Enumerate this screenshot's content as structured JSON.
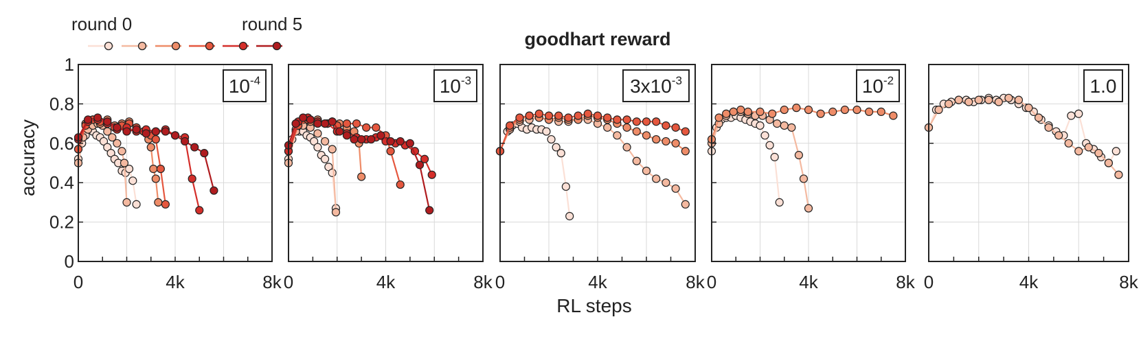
{
  "figure": {
    "title": "goodhart reward",
    "xlabel": "RL steps",
    "ylabel": "accuracy",
    "legend": {
      "start_label": "round 0",
      "end_label": "round 5",
      "placement": "top-left"
    },
    "round_colors": [
      "#fbe0d6",
      "#f4b9a0",
      "#ee8c68",
      "#e5573e",
      "#d42e2a",
      "#b01c1f"
    ]
  },
  "chart_data": [
    {
      "type": "line",
      "panel_label": {
        "base": "10",
        "exp": "-4"
      },
      "x_ticks": [
        "0",
        "4k",
        "8k"
      ],
      "y_ticks": [
        "0",
        "0.2",
        "0.4",
        "0.6",
        "0.8",
        "1"
      ],
      "xlim": [
        0,
        8000
      ],
      "ylim": [
        0,
        1
      ],
      "grid": true,
      "series": [
        {
          "round": 0,
          "x": [
            0,
            150,
            300,
            450,
            600,
            750,
            900,
            1050,
            1200,
            1350,
            1500,
            1650,
            1800,
            1950,
            2100,
            2250,
            2400
          ],
          "y": [
            0.52,
            0.6,
            0.64,
            0.67,
            0.66,
            0.64,
            0.63,
            0.61,
            0.58,
            0.55,
            0.52,
            0.5,
            0.46,
            0.45,
            0.47,
            0.41,
            0.29
          ]
        },
        {
          "round": 1,
          "x": [
            0,
            200,
            400,
            600,
            800,
            1000,
            1200,
            1400,
            1600,
            1800,
            1900,
            2000
          ],
          "y": [
            0.5,
            0.63,
            0.67,
            0.69,
            0.7,
            0.69,
            0.66,
            0.63,
            0.6,
            0.56,
            0.5,
            0.3
          ]
        },
        {
          "round": 2,
          "x": [
            0,
            300,
            600,
            900,
            1200,
            1500,
            1800,
            2100,
            2400,
            2700,
            2900,
            3000,
            3100,
            3200,
            3300
          ],
          "y": [
            0.57,
            0.7,
            0.72,
            0.7,
            0.72,
            0.69,
            0.7,
            0.71,
            0.68,
            0.66,
            0.62,
            0.58,
            0.47,
            0.42,
            0.3
          ]
        },
        {
          "round": 3,
          "x": [
            0,
            300,
            600,
            900,
            1200,
            1500,
            1800,
            2100,
            2400,
            2700,
            3000,
            3200,
            3400,
            3600
          ],
          "y": [
            0.57,
            0.69,
            0.72,
            0.71,
            0.7,
            0.68,
            0.69,
            0.7,
            0.68,
            0.66,
            0.64,
            0.62,
            0.47,
            0.29
          ]
        },
        {
          "round": 4,
          "x": [
            0,
            400,
            800,
            1200,
            1600,
            2000,
            2400,
            2800,
            3200,
            3600,
            4000,
            4400,
            4700,
            5000
          ],
          "y": [
            0.62,
            0.71,
            0.72,
            0.7,
            0.67,
            0.68,
            0.66,
            0.67,
            0.66,
            0.67,
            0.64,
            0.63,
            0.42,
            0.26
          ]
        },
        {
          "round": 5,
          "x": [
            0,
            400,
            800,
            1200,
            1600,
            2000,
            2400,
            2800,
            3200,
            3600,
            4000,
            4400,
            4800,
            5200,
            5600
          ],
          "y": [
            0.63,
            0.72,
            0.73,
            0.71,
            0.68,
            0.66,
            0.67,
            0.65,
            0.66,
            0.66,
            0.64,
            0.61,
            0.58,
            0.55,
            0.36
          ]
        }
      ]
    },
    {
      "type": "line",
      "panel_label": {
        "base": "10",
        "exp": "-3"
      },
      "x_ticks": [
        "0",
        "4k",
        "8k"
      ],
      "y_ticks": [
        "0",
        "0.2",
        "0.4",
        "0.6",
        "0.8",
        "1"
      ],
      "xlim": [
        0,
        8000
      ],
      "ylim": [
        0,
        1
      ],
      "grid": true,
      "series": [
        {
          "round": 0,
          "x": [
            0,
            150,
            300,
            450,
            600,
            750,
            900,
            1050,
            1200,
            1350,
            1500,
            1650,
            1800,
            1950
          ],
          "y": [
            0.52,
            0.62,
            0.67,
            0.66,
            0.66,
            0.64,
            0.63,
            0.61,
            0.58,
            0.54,
            0.52,
            0.48,
            0.45,
            0.27
          ]
        },
        {
          "round": 1,
          "x": [
            0,
            300,
            600,
            900,
            1200,
            1500,
            1800,
            1950
          ],
          "y": [
            0.5,
            0.66,
            0.69,
            0.68,
            0.65,
            0.61,
            0.57,
            0.25
          ]
        },
        {
          "round": 2,
          "x": [
            0,
            300,
            600,
            900,
            1200,
            1500,
            1800,
            2100,
            2400,
            2700,
            2900,
            3000
          ],
          "y": [
            0.56,
            0.7,
            0.72,
            0.71,
            0.72,
            0.7,
            0.71,
            0.7,
            0.68,
            0.66,
            0.6,
            0.43
          ]
        },
        {
          "round": 3,
          "x": [
            0,
            400,
            800,
            1200,
            1600,
            2000,
            2400,
            2800,
            3200,
            3600,
            4000,
            4200,
            4600
          ],
          "y": [
            0.56,
            0.69,
            0.72,
            0.71,
            0.7,
            0.69,
            0.7,
            0.7,
            0.68,
            0.68,
            0.64,
            0.56,
            0.39
          ]
        },
        {
          "round": 4,
          "x": [
            0,
            400,
            800,
            1200,
            1600,
            2000,
            2400,
            2800,
            3200,
            3600,
            4000,
            4400,
            4800,
            5200,
            5600,
            5900
          ],
          "y": [
            0.56,
            0.71,
            0.73,
            0.71,
            0.7,
            0.66,
            0.65,
            0.63,
            0.62,
            0.63,
            0.61,
            0.6,
            0.59,
            0.56,
            0.52,
            0.44
          ]
        },
        {
          "round": 5,
          "x": [
            0,
            300,
            600,
            900,
            1200,
            1500,
            1800,
            2100,
            2400,
            2700,
            3000,
            3400,
            3800,
            4200,
            4600,
            5000,
            5400,
            5800
          ],
          "y": [
            0.59,
            0.7,
            0.73,
            0.72,
            0.7,
            0.7,
            0.71,
            0.66,
            0.64,
            0.62,
            0.62,
            0.62,
            0.64,
            0.61,
            0.61,
            0.6,
            0.49,
            0.26
          ]
        }
      ]
    },
    {
      "type": "line",
      "panel_label": {
        "base": "3x10",
        "exp": "-3"
      },
      "x_ticks": [
        "0",
        "4k",
        "8k"
      ],
      "y_ticks": [
        "0",
        "0.2",
        "0.4",
        "0.6",
        "0.8",
        "1"
      ],
      "xlim": [
        0,
        8000
      ],
      "ylim": [
        0,
        1
      ],
      "grid": true,
      "series": [
        {
          "round": 0,
          "x": [
            0,
            300,
            500,
            700,
            900,
            1100,
            1300,
            1500,
            1700,
            1900,
            2100,
            2300,
            2500,
            2700,
            2850
          ],
          "y": [
            0.56,
            0.66,
            0.69,
            0.7,
            0.68,
            0.67,
            0.68,
            0.67,
            0.67,
            0.66,
            0.62,
            0.58,
            0.55,
            0.38,
            0.23
          ]
        },
        {
          "round": 1,
          "x": [
            0,
            400,
            800,
            1200,
            1600,
            2000,
            2400,
            2800,
            3200,
            3600,
            4000,
            4400,
            4800,
            5200,
            5600,
            6000,
            6400,
            6800,
            7200,
            7600
          ],
          "y": [
            0.56,
            0.67,
            0.71,
            0.72,
            0.73,
            0.72,
            0.71,
            0.71,
            0.72,
            0.72,
            0.7,
            0.68,
            0.64,
            0.58,
            0.51,
            0.46,
            0.42,
            0.4,
            0.37,
            0.29
          ]
        },
        {
          "round": 2,
          "x": [
            0,
            400,
            800,
            1200,
            1600,
            2000,
            2400,
            2800,
            3200,
            3600,
            4000,
            4400,
            4800,
            5200,
            5600,
            6000,
            6400,
            6800,
            7200,
            7600
          ],
          "y": [
            0.56,
            0.68,
            0.72,
            0.74,
            0.73,
            0.72,
            0.73,
            0.72,
            0.72,
            0.74,
            0.73,
            0.72,
            0.7,
            0.68,
            0.66,
            0.64,
            0.62,
            0.61,
            0.6,
            0.56
          ]
        },
        {
          "round": 3,
          "x": [
            0,
            400,
            800,
            1200,
            1600,
            2000,
            2400,
            2800,
            3200,
            3600,
            4000,
            4400,
            4800,
            5200,
            5600,
            6000,
            6400,
            6800,
            7200,
            7600
          ],
          "y": [
            0.56,
            0.69,
            0.73,
            0.74,
            0.75,
            0.74,
            0.74,
            0.73,
            0.74,
            0.75,
            0.74,
            0.73,
            0.72,
            0.72,
            0.71,
            0.71,
            0.71,
            0.69,
            0.68,
            0.66
          ]
        }
      ]
    },
    {
      "type": "line",
      "panel_label": {
        "base": "10",
        "exp": "-2"
      },
      "x_ticks": [
        "0",
        "4k",
        "8k"
      ],
      "y_ticks": [
        "0",
        "0.2",
        "0.4",
        "0.6",
        "0.8",
        "1"
      ],
      "xlim": [
        0,
        8000
      ],
      "ylim": [
        0,
        1
      ],
      "grid": true,
      "series": [
        {
          "round": 0,
          "x": [
            0,
            200,
            400,
            600,
            800,
            1000,
            1200,
            1400,
            1600,
            1800,
            2000,
            2200,
            2400,
            2600,
            2800
          ],
          "y": [
            0.56,
            0.68,
            0.72,
            0.73,
            0.73,
            0.74,
            0.73,
            0.72,
            0.71,
            0.7,
            0.69,
            0.64,
            0.59,
            0.53,
            0.3
          ]
        },
        {
          "round": 1,
          "x": [
            0,
            300,
            600,
            900,
            1200,
            1500,
            1800,
            2100,
            2400,
            2700,
            3000,
            3300,
            3600,
            3800,
            4000
          ],
          "y": [
            0.6,
            0.7,
            0.74,
            0.76,
            0.76,
            0.75,
            0.74,
            0.74,
            0.72,
            0.7,
            0.69,
            0.68,
            0.54,
            0.42,
            0.27
          ]
        },
        {
          "round": 2,
          "x": [
            0,
            300,
            600,
            900,
            1200,
            1500,
            2000,
            2500,
            3000,
            3500,
            4000,
            4500,
            5000,
            5500,
            6000,
            6500,
            7000,
            7500
          ],
          "y": [
            0.62,
            0.73,
            0.75,
            0.76,
            0.77,
            0.76,
            0.76,
            0.75,
            0.77,
            0.78,
            0.77,
            0.75,
            0.76,
            0.77,
            0.77,
            0.76,
            0.76,
            0.74
          ]
        }
      ]
    },
    {
      "type": "line",
      "panel_label": {
        "base": "1.0",
        "exp": ""
      },
      "x_ticks": [
        "0",
        "4k",
        "8k"
      ],
      "y_ticks": [
        "0",
        "0.2",
        "0.4",
        "0.6",
        "0.8",
        "1"
      ],
      "xlim": [
        0,
        8000
      ],
      "ylim": [
        0,
        1
      ],
      "grid": true,
      "series": [
        {
          "round": 0,
          "x": [
            0,
            300,
            600,
            900,
            1200,
            1500,
            1800,
            2100,
            2400,
            2700,
            3000,
            3300,
            3600,
            3900,
            4200,
            4500,
            4800,
            5100,
            5400,
            5700,
            6000,
            6300,
            6600,
            6900,
            7200,
            7500
          ],
          "y": [
            0.68,
            0.77,
            0.8,
            0.81,
            0.82,
            0.82,
            0.81,
            0.82,
            0.83,
            0.82,
            0.83,
            0.82,
            0.8,
            0.78,
            0.76,
            0.72,
            0.69,
            0.66,
            0.64,
            0.74,
            0.75,
            0.6,
            0.57,
            0.53,
            0.5,
            0.56
          ]
        },
        {
          "round": 1,
          "x": [
            0,
            400,
            800,
            1200,
            1600,
            2000,
            2400,
            2800,
            3200,
            3600,
            4000,
            4400,
            4800,
            5200,
            5600,
            6000,
            6400,
            6800,
            7200,
            7600
          ],
          "y": [
            0.68,
            0.77,
            0.8,
            0.82,
            0.81,
            0.82,
            0.82,
            0.81,
            0.83,
            0.82,
            0.78,
            0.73,
            0.68,
            0.64,
            0.6,
            0.56,
            0.58,
            0.55,
            0.5,
            0.44
          ]
        }
      ]
    }
  ]
}
